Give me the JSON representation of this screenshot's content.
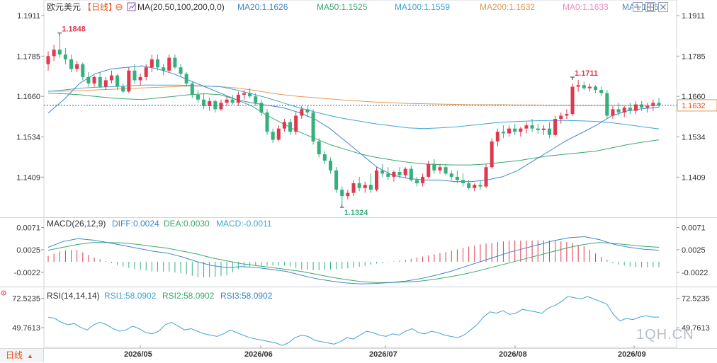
{
  "header": {
    "instrument": "欧元美元",
    "period": "【日线】",
    "ma_label": "MA(20,50,100,200,0,0)",
    "ma_values": [
      {
        "text": "MA20:1.1626",
        "color": "#3f86ce"
      },
      {
        "text": "MA50:1.1525",
        "color": "#3aa96b"
      },
      {
        "text": "MA100:1.1559",
        "color": "#3ea5d6"
      },
      {
        "text": "MA200:1.1632",
        "color": "#e39a54"
      },
      {
        "text": "MA0:1.1633",
        "color": "#e88fbd"
      },
      {
        "text": "MA0:1.1633",
        "color": "#4c8ad1"
      }
    ]
  },
  "macd": {
    "label": "MACD(26,12,9)",
    "diff": "DIFF:0.0024",
    "dea": "DEA:0.0030",
    "macd": "MACD:-0.0011",
    "ticks": [
      "0.0071",
      "0.0025",
      "-0.0022"
    ]
  },
  "rsi": {
    "label": "RSI(14,14,14)",
    "rsi1": "RSI1:58.0902",
    "rsi2": "RSI2:58.0902",
    "rsi3": "RSI3:58.0902",
    "ticks": [
      "72.5235",
      "49.7613"
    ]
  },
  "price_axis": {
    "ticks": [
      "1.1911",
      "1.1785",
      "1.1660",
      "1.1534",
      "1.1409"
    ],
    "current": "1.1632"
  },
  "annotations": {
    "high1": "1.1848",
    "low": "1.1324",
    "high2": "1.1711"
  },
  "bottom": {
    "period_tab": "日线",
    "months": [
      "2026/05",
      "2026/06",
      "2026/07",
      "2026/08",
      "2026/09"
    ]
  },
  "watermark": "1QH.CN",
  "colors": {
    "up": "#e0394f",
    "down": "#35b07c",
    "ma20": "#3f86ce",
    "ma50": "#3aa96b",
    "ma100": "#3ea5d6",
    "ma200": "#e39a54",
    "diff": "#3f86ce",
    "dea": "#3aa96b",
    "rsi": "#3ea5d6"
  },
  "chart_data": [
    {
      "type": "candlestick",
      "title": "欧元美元【日线】",
      "ylim": [
        1.1324,
        1.1911
      ],
      "y_ticks": [
        1.1911,
        1.1785,
        1.166,
        1.1534,
        1.1409
      ],
      "current_price": 1.1632,
      "x_labels": [
        "2026/05",
        "2026/06",
        "2026/07",
        "2026/08",
        "2026/09"
      ],
      "candles": [
        [
          1.176,
          1.18,
          1.174,
          1.1785
        ],
        [
          1.1785,
          1.182,
          1.177,
          1.1805
        ],
        [
          1.1805,
          1.1848,
          1.178,
          1.179
        ],
        [
          1.179,
          1.181,
          1.176,
          1.1775
        ],
        [
          1.1775,
          1.179,
          1.1735,
          1.1745
        ],
        [
          1.1745,
          1.177,
          1.1735,
          1.176
        ],
        [
          1.176,
          1.1765,
          1.171,
          1.172
        ],
        [
          1.172,
          1.1735,
          1.169,
          1.17
        ],
        [
          1.17,
          1.1725,
          1.169,
          1.172
        ],
        [
          1.172,
          1.1735,
          1.1685,
          1.169
        ],
        [
          1.169,
          1.172,
          1.168,
          1.171
        ],
        [
          1.171,
          1.174,
          1.17,
          1.1725
        ],
        [
          1.1725,
          1.173,
          1.168,
          1.169
        ],
        [
          1.169,
          1.17,
          1.167,
          1.1675
        ],
        [
          1.1675,
          1.175,
          1.167,
          1.174
        ],
        [
          1.174,
          1.176,
          1.17,
          1.171
        ],
        [
          1.171,
          1.173,
          1.1695,
          1.172
        ],
        [
          1.172,
          1.176,
          1.171,
          1.175
        ],
        [
          1.175,
          1.179,
          1.1735,
          1.1775
        ],
        [
          1.1775,
          1.179,
          1.174,
          1.175
        ],
        [
          1.175,
          1.176,
          1.1725,
          1.174
        ],
        [
          1.174,
          1.179,
          1.1735,
          1.178
        ],
        [
          1.178,
          1.179,
          1.1745,
          1.175
        ],
        [
          1.175,
          1.176,
          1.172,
          1.173
        ],
        [
          1.173,
          1.1735,
          1.169,
          1.17
        ],
        [
          1.17,
          1.1705,
          1.1655,
          1.1665
        ],
        [
          1.1665,
          1.168,
          1.164,
          1.165
        ],
        [
          1.165,
          1.167,
          1.162,
          1.163
        ],
        [
          1.163,
          1.1655,
          1.1615,
          1.1645
        ],
        [
          1.1645,
          1.165,
          1.161,
          1.162
        ],
        [
          1.162,
          1.165,
          1.1615,
          1.164
        ],
        [
          1.164,
          1.166,
          1.163,
          1.165
        ],
        [
          1.165,
          1.1665,
          1.1635,
          1.164
        ],
        [
          1.164,
          1.1675,
          1.163,
          1.1665
        ],
        [
          1.1665,
          1.168,
          1.165,
          1.167
        ],
        [
          1.167,
          1.1685,
          1.1655,
          1.166
        ],
        [
          1.166,
          1.167,
          1.163,
          1.164
        ],
        [
          1.164,
          1.165,
          1.16,
          1.161
        ],
        [
          1.161,
          1.162,
          1.154,
          1.155
        ],
        [
          1.155,
          1.156,
          1.1515,
          1.1525
        ],
        [
          1.1525,
          1.157,
          1.152,
          1.156
        ],
        [
          1.156,
          1.159,
          1.155,
          1.158
        ],
        [
          1.158,
          1.159,
          1.154,
          1.155
        ],
        [
          1.155,
          1.161,
          1.154,
          1.16
        ],
        [
          1.16,
          1.163,
          1.159,
          1.162
        ],
        [
          1.162,
          1.163,
          1.1595,
          1.161
        ],
        [
          1.161,
          1.162,
          1.151,
          1.152
        ],
        [
          1.152,
          1.153,
          1.147,
          1.148
        ],
        [
          1.148,
          1.149,
          1.145,
          1.146
        ],
        [
          1.146,
          1.147,
          1.142,
          1.143
        ],
        [
          1.143,
          1.144,
          1.136,
          1.137
        ],
        [
          1.137,
          1.138,
          1.1324,
          1.135
        ],
        [
          1.135,
          1.137,
          1.134,
          1.136
        ],
        [
          1.136,
          1.14,
          1.135,
          1.139
        ],
        [
          1.139,
          1.141,
          1.1365,
          1.1375
        ],
        [
          1.1375,
          1.1395,
          1.136,
          1.1385
        ],
        [
          1.1385,
          1.142,
          1.136,
          1.137
        ],
        [
          1.137,
          1.144,
          1.1365,
          1.143
        ],
        [
          1.143,
          1.145,
          1.141,
          1.142
        ],
        [
          1.142,
          1.144,
          1.14,
          1.141
        ],
        [
          1.141,
          1.143,
          1.1395,
          1.1425
        ],
        [
          1.1425,
          1.144,
          1.1405,
          1.1415
        ],
        [
          1.1415,
          1.144,
          1.1405,
          1.1435
        ],
        [
          1.1435,
          1.1445,
          1.1395,
          1.14
        ],
        [
          1.14,
          1.141,
          1.138,
          1.139
        ],
        [
          1.139,
          1.142,
          1.138,
          1.141
        ],
        [
          1.141,
          1.146,
          1.1405,
          1.145
        ],
        [
          1.145,
          1.1465,
          1.142,
          1.143
        ],
        [
          1.143,
          1.145,
          1.142,
          1.144
        ],
        [
          1.144,
          1.145,
          1.1415,
          1.142
        ],
        [
          1.142,
          1.143,
          1.14,
          1.141
        ],
        [
          1.141,
          1.143,
          1.139,
          1.14
        ],
        [
          1.14,
          1.142,
          1.138,
          1.139
        ],
        [
          1.139,
          1.14,
          1.137,
          1.1375
        ],
        [
          1.1375,
          1.139,
          1.1365,
          1.1385
        ],
        [
          1.1385,
          1.14,
          1.137,
          1.138
        ],
        [
          1.138,
          1.145,
          1.1375,
          1.144
        ],
        [
          1.144,
          1.153,
          1.1435,
          1.152
        ],
        [
          1.152,
          1.156,
          1.1505,
          1.155
        ],
        [
          1.155,
          1.157,
          1.153,
          1.1545
        ],
        [
          1.1545,
          1.157,
          1.1535,
          1.156
        ],
        [
          1.156,
          1.1575,
          1.154,
          1.155
        ],
        [
          1.155,
          1.1565,
          1.1535,
          1.156
        ],
        [
          1.156,
          1.158,
          1.1545,
          1.157
        ],
        [
          1.157,
          1.159,
          1.155,
          1.156
        ],
        [
          1.156,
          1.1575,
          1.1545,
          1.1555
        ],
        [
          1.1555,
          1.157,
          1.154,
          1.156
        ],
        [
          1.156,
          1.158,
          1.153,
          1.154
        ],
        [
          1.154,
          1.16,
          1.1535,
          1.159
        ],
        [
          1.159,
          1.161,
          1.1575,
          1.16
        ],
        [
          1.16,
          1.162,
          1.159,
          1.1605
        ],
        [
          1.1605,
          1.17,
          1.16,
          1.169
        ],
        [
          1.169,
          1.1711,
          1.1675,
          1.1695
        ],
        [
          1.1695,
          1.1705,
          1.168,
          1.1685
        ],
        [
          1.1685,
          1.17,
          1.1675,
          1.169
        ],
        [
          1.169,
          1.1695,
          1.167,
          1.168
        ],
        [
          1.168,
          1.169,
          1.166,
          1.167
        ],
        [
          1.167,
          1.168,
          1.159,
          1.16
        ],
        [
          1.16,
          1.163,
          1.159,
          1.162
        ],
        [
          1.162,
          1.164,
          1.16,
          1.161
        ],
        [
          1.161,
          1.163,
          1.1595,
          1.1625
        ],
        [
          1.1625,
          1.164,
          1.1605,
          1.1615
        ],
        [
          1.1615,
          1.1645,
          1.1605,
          1.1635
        ],
        [
          1.1635,
          1.1645,
          1.1615,
          1.1625
        ],
        [
          1.1625,
          1.164,
          1.161,
          1.163
        ],
        [
          1.163,
          1.165,
          1.1615,
          1.164
        ],
        [
          1.164,
          1.1655,
          1.1625,
          1.1632
        ]
      ],
      "ma20_start": 1.1608,
      "ma20_points": [
        1.1608,
        1.165,
        1.17,
        1.173,
        1.1745,
        1.175,
        1.1755,
        1.1745,
        1.173,
        1.171,
        1.169,
        1.167,
        1.165,
        1.164,
        1.1632,
        1.1625,
        1.161,
        1.159,
        1.156,
        1.152,
        1.148,
        1.144,
        1.1415,
        1.1405,
        1.14,
        1.14,
        1.1395,
        1.1395,
        1.14,
        1.141,
        1.143,
        1.146,
        1.149,
        1.152,
        1.1545,
        1.157,
        1.16,
        1.1615,
        1.1622,
        1.1626
      ],
      "ma50_points": [
        1.167,
        1.1668,
        1.1665,
        1.166,
        1.1655,
        1.1652,
        1.165,
        1.1655,
        1.166,
        1.1665,
        1.1668,
        1.1665,
        1.165,
        1.163,
        1.16,
        1.1575,
        1.155,
        1.153,
        1.151,
        1.1495,
        1.148,
        1.147,
        1.1462,
        1.1455,
        1.145,
        1.1448,
        1.1447,
        1.1447,
        1.145,
        1.1455,
        1.146,
        1.1468,
        1.1475,
        1.148,
        1.1485,
        1.149,
        1.15,
        1.151,
        1.1518,
        1.1525
      ],
      "ma100_points": [
        1.1675,
        1.168,
        1.1685,
        1.1688,
        1.169,
        1.1692,
        1.1695,
        1.1695,
        1.1695,
        1.1694,
        1.1692,
        1.169,
        1.168,
        1.1668,
        1.1655,
        1.164,
        1.1625,
        1.1612,
        1.16,
        1.159,
        1.1582,
        1.1574,
        1.1568,
        1.1562,
        1.156,
        1.1562,
        1.1565,
        1.157,
        1.1575,
        1.158,
        1.1582,
        1.1584,
        1.1585,
        1.1585,
        1.1584,
        1.1582,
        1.1578,
        1.1572,
        1.1565,
        1.1559
      ],
      "ma200_points": [
        1.1676,
        1.1676,
        1.1678,
        1.168,
        1.1682,
        1.1684,
        1.1686,
        1.1688,
        1.169,
        1.1692,
        1.1692,
        1.169,
        1.1686,
        1.168,
        1.1672,
        1.1665,
        1.166,
        1.1656,
        1.1652,
        1.1648,
        1.1645,
        1.1642,
        1.164,
        1.1638,
        1.1637,
        1.1636,
        1.1635,
        1.1634,
        1.1634,
        1.1634,
        1.1633,
        1.1633,
        1.1632,
        1.1632,
        1.1632,
        1.1632,
        1.1632,
        1.1632,
        1.1632,
        1.1632
      ]
    },
    {
      "type": "bar+line",
      "title": "MACD(26,12,9)",
      "ylim": [
        -0.005,
        0.0085
      ],
      "y_ticks": [
        0.0071,
        0.0025,
        -0.0022
      ],
      "diff_points": [
        0.003,
        0.0042,
        0.0048,
        0.0045,
        0.004,
        0.0034,
        0.0028,
        0.0022,
        0.0018,
        0.001,
        0.0,
        -0.0008,
        -0.0012,
        -0.001,
        -0.0012,
        -0.0016,
        -0.002,
        -0.0028,
        -0.0035,
        -0.004,
        -0.0044,
        -0.0046,
        -0.0045,
        -0.0043,
        -0.004,
        -0.0035,
        -0.0028,
        -0.002,
        -0.001,
        0.0,
        0.001,
        0.002,
        0.0028,
        0.0036,
        0.0044,
        0.005,
        0.0052,
        0.0046,
        0.0036,
        0.003,
        0.0026,
        0.0024
      ],
      "dea_points": [
        0.0024,
        0.003,
        0.0036,
        0.004,
        0.004,
        0.0039,
        0.0036,
        0.0032,
        0.0028,
        0.0022,
        0.0016,
        0.0008,
        0.0002,
        -0.0004,
        -0.0008,
        -0.0012,
        -0.0016,
        -0.002,
        -0.0026,
        -0.0032,
        -0.0037,
        -0.0041,
        -0.0043,
        -0.0043,
        -0.0042,
        -0.004,
        -0.0036,
        -0.0031,
        -0.0025,
        -0.0018,
        -0.001,
        -0.0002,
        0.0006,
        0.0014,
        0.0022,
        0.003,
        0.0036,
        0.004,
        0.0038,
        0.0035,
        0.0032,
        0.003
      ],
      "histogram": [
        0.0012,
        0.0024,
        0.0024,
        0.001,
        0.0,
        -0.001,
        -0.0016,
        -0.002,
        -0.002,
        -0.0024,
        -0.0032,
        -0.0032,
        -0.0028,
        -0.0012,
        -0.0008,
        -0.0008,
        -0.0008,
        -0.0016,
        -0.0018,
        -0.0016,
        -0.0014,
        -0.001,
        -0.0004,
        0.0,
        0.0004,
        0.001,
        0.0016,
        0.0022,
        0.003,
        0.0036,
        0.004,
        0.0044,
        0.0044,
        0.0044,
        0.0044,
        0.004,
        0.0032,
        0.0012,
        -0.0004,
        -0.001,
        -0.0012,
        -0.0011
      ]
    },
    {
      "type": "line",
      "title": "RSI(14,14,14)",
      "ylim": [
        35,
        80
      ],
      "y_ticks": [
        72.5235,
        49.7613
      ],
      "rsi_points": [
        58,
        57,
        54,
        52,
        53,
        50,
        48,
        52,
        54,
        52,
        49,
        47,
        48,
        51,
        49,
        46,
        45,
        47,
        52,
        54,
        51,
        48,
        49,
        47,
        45,
        44,
        43,
        45,
        48,
        46,
        44,
        42,
        41,
        40,
        39,
        38,
        36,
        38,
        42,
        44,
        43,
        40,
        39,
        38,
        37,
        39,
        42,
        41,
        44,
        47,
        46,
        44,
        43,
        45,
        44,
        47,
        49,
        46,
        45,
        47,
        46,
        44,
        43,
        42,
        44,
        48,
        52,
        58,
        62,
        61,
        63,
        60,
        61,
        64,
        63,
        62,
        61,
        65,
        67,
        70,
        74,
        73,
        72,
        74,
        72,
        70,
        68,
        60,
        55,
        57,
        56,
        58,
        59,
        58,
        58
      ]
    }
  ]
}
